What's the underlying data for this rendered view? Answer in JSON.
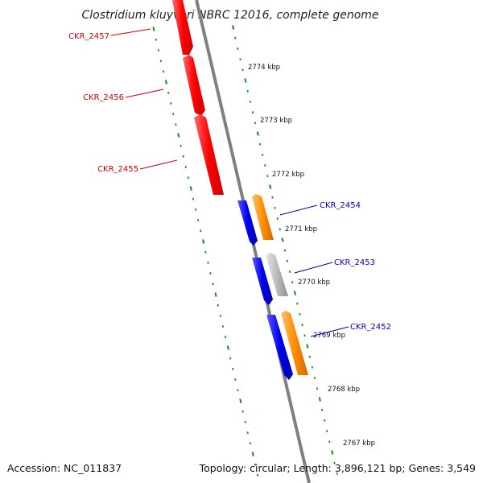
{
  "title": "Clostridium kluyveri NBRC 12016, complete genome",
  "footer": {
    "accession": "Accession: NC_011837",
    "summary": "Topology: circular; Length: 3,896,121 bp; Genes: 3,549"
  },
  "colors": {
    "backbone": "#808080",
    "tick_marks": "#1a8a1a",
    "red_gene": "#ff0000",
    "blue_gene": "#0000ee",
    "orange_gene": "#ff8c00",
    "gray_gene": "#bbbbbb",
    "red_label": "#cc0000",
    "blue_label": "#0000bb"
  },
  "scale_labels": [
    "2774 kbp",
    "2773 kbp",
    "2772 kbp",
    "2771 kbp",
    "2770 kbp",
    "2769 kbp",
    "2768 kbp",
    "2767 kbp"
  ],
  "gene_labels": [
    {
      "text": "CKR_2457",
      "color": "red"
    },
    {
      "text": "CKR_2456",
      "color": "red"
    },
    {
      "text": "CKR_2455",
      "color": "red"
    },
    {
      "text": "CKR_2454",
      "color": "blue"
    },
    {
      "text": "CKR_2453",
      "color": "blue"
    },
    {
      "text": "CKR_2452",
      "color": "blue"
    }
  ]
}
